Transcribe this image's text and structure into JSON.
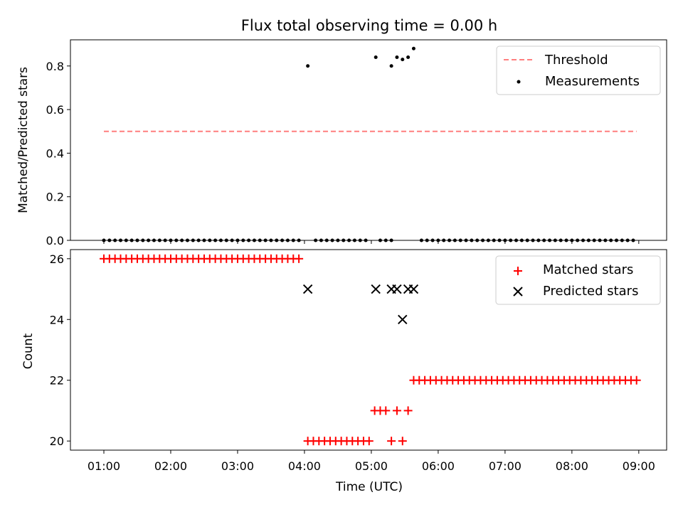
{
  "chart_data": [
    {
      "type": "scatter",
      "title": "Flux total observing time = 0.00 h",
      "xlabel": "",
      "ylabel": "Matched/Predicted stars",
      "xlim": [
        "00:30",
        "09:25"
      ],
      "ylim": [
        0,
        0.92
      ],
      "yticks": [
        "0.0",
        "0.2",
        "0.4",
        "0.6",
        "0.8"
      ],
      "threshold": {
        "name": "Threshold",
        "value": 0.5,
        "x_range": [
          "01:00",
          "08:58"
        ],
        "color": "#ff7f7f"
      },
      "measurements": {
        "name": "Measurements",
        "color": "#000000",
        "points": [
          [
            "01:00",
            0
          ],
          [
            "01:05",
            0
          ],
          [
            "01:10",
            0
          ],
          [
            "01:15",
            0
          ],
          [
            "01:20",
            0
          ],
          [
            "01:25",
            0
          ],
          [
            "01:30",
            0
          ],
          [
            "01:35",
            0
          ],
          [
            "01:40",
            0
          ],
          [
            "01:45",
            0
          ],
          [
            "01:50",
            0
          ],
          [
            "01:55",
            0
          ],
          [
            "02:00",
            0
          ],
          [
            "02:05",
            0
          ],
          [
            "02:10",
            0
          ],
          [
            "02:15",
            0
          ],
          [
            "02:20",
            0
          ],
          [
            "02:25",
            0
          ],
          [
            "02:30",
            0
          ],
          [
            "02:35",
            0
          ],
          [
            "02:40",
            0
          ],
          [
            "02:45",
            0
          ],
          [
            "02:50",
            0
          ],
          [
            "02:55",
            0
          ],
          [
            "03:00",
            0
          ],
          [
            "03:05",
            0
          ],
          [
            "03:10",
            0
          ],
          [
            "03:15",
            0
          ],
          [
            "03:20",
            0
          ],
          [
            "03:25",
            0
          ],
          [
            "03:30",
            0
          ],
          [
            "03:35",
            0
          ],
          [
            "03:40",
            0
          ],
          [
            "03:45",
            0
          ],
          [
            "03:50",
            0
          ],
          [
            "03:55",
            0
          ],
          [
            "04:03",
            0.8
          ],
          [
            "04:10",
            0
          ],
          [
            "04:15",
            0
          ],
          [
            "04:20",
            0
          ],
          [
            "04:25",
            0
          ],
          [
            "04:30",
            0
          ],
          [
            "04:35",
            0
          ],
          [
            "04:40",
            0
          ],
          [
            "04:45",
            0
          ],
          [
            "04:50",
            0
          ],
          [
            "04:55",
            0
          ],
          [
            "05:04",
            0.84
          ],
          [
            "05:08",
            0
          ],
          [
            "05:13",
            0
          ],
          [
            "05:18",
            0
          ],
          [
            "05:18",
            0.8
          ],
          [
            "05:23",
            0.84
          ],
          [
            "05:28",
            0.83
          ],
          [
            "05:33",
            0.84
          ],
          [
            "05:38",
            0.88
          ],
          [
            "05:45",
            0
          ],
          [
            "05:50",
            0
          ],
          [
            "05:55",
            0
          ],
          [
            "06:00",
            0
          ],
          [
            "06:05",
            0
          ],
          [
            "06:10",
            0
          ],
          [
            "06:15",
            0
          ],
          [
            "06:20",
            0
          ],
          [
            "06:25",
            0
          ],
          [
            "06:30",
            0
          ],
          [
            "06:35",
            0
          ],
          [
            "06:40",
            0
          ],
          [
            "06:45",
            0
          ],
          [
            "06:50",
            0
          ],
          [
            "06:55",
            0
          ],
          [
            "07:00",
            0
          ],
          [
            "07:05",
            0
          ],
          [
            "07:10",
            0
          ],
          [
            "07:15",
            0
          ],
          [
            "07:20",
            0
          ],
          [
            "07:25",
            0
          ],
          [
            "07:30",
            0
          ],
          [
            "07:35",
            0
          ],
          [
            "07:40",
            0
          ],
          [
            "07:45",
            0
          ],
          [
            "07:50",
            0
          ],
          [
            "07:55",
            0
          ],
          [
            "08:00",
            0
          ],
          [
            "08:05",
            0
          ],
          [
            "08:10",
            0
          ],
          [
            "08:15",
            0
          ],
          [
            "08:20",
            0
          ],
          [
            "08:25",
            0
          ],
          [
            "08:30",
            0
          ],
          [
            "08:35",
            0
          ],
          [
            "08:40",
            0
          ],
          [
            "08:45",
            0
          ],
          [
            "08:50",
            0
          ],
          [
            "08:55",
            0
          ]
        ]
      },
      "legend": {
        "position": "upper right",
        "entries": [
          "Threshold",
          "Measurements"
        ]
      }
    },
    {
      "type": "scatter",
      "title": "",
      "xlabel": "Time (UTC)",
      "ylabel": "Count",
      "xlim": [
        "00:30",
        "09:25"
      ],
      "ylim": [
        19.7,
        26.3
      ],
      "xticks": [
        "01:00",
        "02:00",
        "03:00",
        "04:00",
        "05:00",
        "06:00",
        "07:00",
        "08:00",
        "09:00"
      ],
      "yticks": [
        "20",
        "22",
        "24",
        "26"
      ],
      "matched": {
        "name": "Matched stars",
        "color": "#ff0000",
        "points": [
          [
            "01:00",
            26
          ],
          [
            "01:05",
            26
          ],
          [
            "01:10",
            26
          ],
          [
            "01:15",
            26
          ],
          [
            "01:20",
            26
          ],
          [
            "01:25",
            26
          ],
          [
            "01:30",
            26
          ],
          [
            "01:35",
            26
          ],
          [
            "01:40",
            26
          ],
          [
            "01:45",
            26
          ],
          [
            "01:50",
            26
          ],
          [
            "01:55",
            26
          ],
          [
            "02:00",
            26
          ],
          [
            "02:05",
            26
          ],
          [
            "02:10",
            26
          ],
          [
            "02:15",
            26
          ],
          [
            "02:20",
            26
          ],
          [
            "02:25",
            26
          ],
          [
            "02:30",
            26
          ],
          [
            "02:35",
            26
          ],
          [
            "02:40",
            26
          ],
          [
            "02:45",
            26
          ],
          [
            "02:50",
            26
          ],
          [
            "02:55",
            26
          ],
          [
            "03:00",
            26
          ],
          [
            "03:05",
            26
          ],
          [
            "03:10",
            26
          ],
          [
            "03:15",
            26
          ],
          [
            "03:20",
            26
          ],
          [
            "03:25",
            26
          ],
          [
            "03:30",
            26
          ],
          [
            "03:35",
            26
          ],
          [
            "03:40",
            26
          ],
          [
            "03:45",
            26
          ],
          [
            "03:50",
            26
          ],
          [
            "03:55",
            26
          ],
          [
            "04:03",
            20
          ],
          [
            "04:08",
            20
          ],
          [
            "04:13",
            20
          ],
          [
            "04:18",
            20
          ],
          [
            "04:23",
            20
          ],
          [
            "04:28",
            20
          ],
          [
            "04:33",
            20
          ],
          [
            "04:38",
            20
          ],
          [
            "04:43",
            20
          ],
          [
            "04:48",
            20
          ],
          [
            "04:53",
            20
          ],
          [
            "04:58",
            20
          ],
          [
            "05:03",
            21
          ],
          [
            "05:08",
            21
          ],
          [
            "05:13",
            21
          ],
          [
            "05:18",
            20
          ],
          [
            "05:23",
            21
          ],
          [
            "05:28",
            20
          ],
          [
            "05:33",
            21
          ],
          [
            "05:38",
            22
          ],
          [
            "05:43",
            22
          ],
          [
            "05:48",
            22
          ],
          [
            "05:53",
            22
          ],
          [
            "05:58",
            22
          ],
          [
            "06:03",
            22
          ],
          [
            "06:08",
            22
          ],
          [
            "06:13",
            22
          ],
          [
            "06:18",
            22
          ],
          [
            "06:23",
            22
          ],
          [
            "06:28",
            22
          ],
          [
            "06:33",
            22
          ],
          [
            "06:38",
            22
          ],
          [
            "06:43",
            22
          ],
          [
            "06:48",
            22
          ],
          [
            "06:53",
            22
          ],
          [
            "06:58",
            22
          ],
          [
            "07:03",
            22
          ],
          [
            "07:08",
            22
          ],
          [
            "07:13",
            22
          ],
          [
            "07:18",
            22
          ],
          [
            "07:23",
            22
          ],
          [
            "07:28",
            22
          ],
          [
            "07:33",
            22
          ],
          [
            "07:38",
            22
          ],
          [
            "07:43",
            22
          ],
          [
            "07:48",
            22
          ],
          [
            "07:53",
            22
          ],
          [
            "07:58",
            22
          ],
          [
            "08:03",
            22
          ],
          [
            "08:08",
            22
          ],
          [
            "08:13",
            22
          ],
          [
            "08:18",
            22
          ],
          [
            "08:23",
            22
          ],
          [
            "08:28",
            22
          ],
          [
            "08:33",
            22
          ],
          [
            "08:38",
            22
          ],
          [
            "08:43",
            22
          ],
          [
            "08:48",
            22
          ],
          [
            "08:53",
            22
          ],
          [
            "08:58",
            22
          ]
        ]
      },
      "predicted": {
        "name": "Predicted stars",
        "color": "#000000",
        "points": [
          [
            "04:03",
            25
          ],
          [
            "05:04",
            25
          ],
          [
            "05:18",
            25
          ],
          [
            "05:23",
            25
          ],
          [
            "05:28",
            24
          ],
          [
            "05:33",
            25
          ],
          [
            "05:38",
            25
          ]
        ]
      },
      "legend": {
        "position": "upper right",
        "entries": [
          "Matched stars",
          "Predicted stars"
        ]
      }
    }
  ]
}
